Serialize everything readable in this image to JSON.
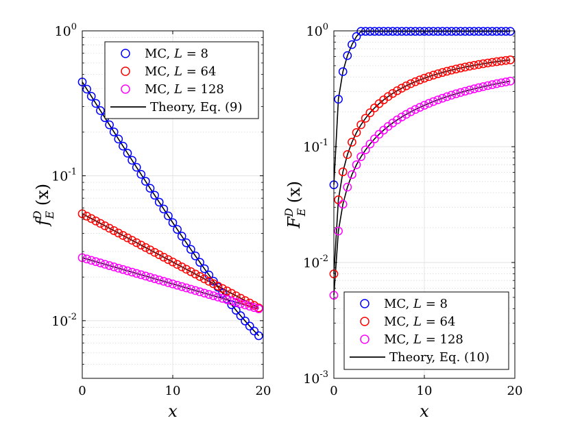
{
  "chart_data": [
    {
      "type": "scatter",
      "panel": "left",
      "ylabel_main": "f",
      "ylabel_sup": "D",
      "ylabel_sub": "E",
      "ylabel_arg": "(x)",
      "xlabel": "x",
      "xlim": [
        0,
        20
      ],
      "ylim": [
        0.004,
        1
      ],
      "yscale": "log",
      "x_ticks": [
        "0",
        "10",
        "20"
      ],
      "y_ticks": [
        {
          "base": "10",
          "exp": "0"
        },
        {
          "base": "10",
          "exp": "-1"
        },
        {
          "base": "10",
          "exp": "-2"
        }
      ],
      "grid": true,
      "legend_placement": "top-right",
      "series": [
        {
          "name": "MC, L = 8",
          "label_prefix": "MC, ",
          "label_var": "L",
          "label_rel": "= 8",
          "color": "#0000ff",
          "kind": "markers",
          "a": 0.441,
          "b": 0.229,
          "c": 0.0028
        },
        {
          "name": "MC, L = 64",
          "label_prefix": "MC, ",
          "label_var": "L",
          "label_rel": "= 64",
          "color": "#ff0000",
          "kind": "markers",
          "a": 0.0547,
          "b": 0.0767,
          "c": 0
        },
        {
          "name": "MC, L = 128",
          "label_prefix": "MC, ",
          "label_var": "L",
          "label_rel": "= 128",
          "color": "#ff00ff",
          "kind": "markers",
          "a": 0.0272,
          "b": 0.0417,
          "c": 0
        },
        {
          "name": "Theory, Eq. (9)",
          "label_prefix": "Theory, Eq. (9)",
          "label_var": "",
          "label_rel": "",
          "color": "#000000",
          "kind": "line"
        }
      ]
    },
    {
      "type": "scatter",
      "panel": "right",
      "ylabel_main": "F",
      "ylabel_sup": "D",
      "ylabel_sub": "E",
      "ylabel_arg": "(x)",
      "xlabel": "x",
      "xlim": [
        0,
        20
      ],
      "ylim": [
        0.001,
        1
      ],
      "yscale": "log",
      "x_ticks": [
        "0",
        "10",
        "20"
      ],
      "y_ticks": [
        {
          "base": "10",
          "exp": "0"
        },
        {
          "base": "10",
          "exp": "-1"
        },
        {
          "base": "10",
          "exp": "-2"
        },
        {
          "base": "10",
          "exp": "-3"
        }
      ],
      "grid": true,
      "legend_placement": "bottom-right",
      "series": [
        {
          "name": "MC, L = 8",
          "label_prefix": "MC, ",
          "label_var": "L",
          "label_rel": "= 8",
          "color": "#0000ff",
          "kind": "markers",
          "a": 0.441,
          "b": 0.229,
          "c": 0.0028
        },
        {
          "name": "MC, L = 64",
          "label_prefix": "MC, ",
          "label_var": "L",
          "label_rel": "= 64",
          "color": "#ff0000",
          "kind": "markers",
          "a": 0.0547,
          "b": 0.0767,
          "c": 0
        },
        {
          "name": "MC, L = 128",
          "label_prefix": "MC, ",
          "label_var": "L",
          "label_rel": "= 128",
          "color": "#ff00ff",
          "kind": "markers",
          "a": 0.0272,
          "b": 0.0417,
          "c": 0
        },
        {
          "name": "Theory, Eq. (10)",
          "label_prefix": "Theory, Eq. (10)",
          "label_var": "",
          "label_rel": "",
          "color": "#000000",
          "kind": "line"
        }
      ]
    }
  ]
}
